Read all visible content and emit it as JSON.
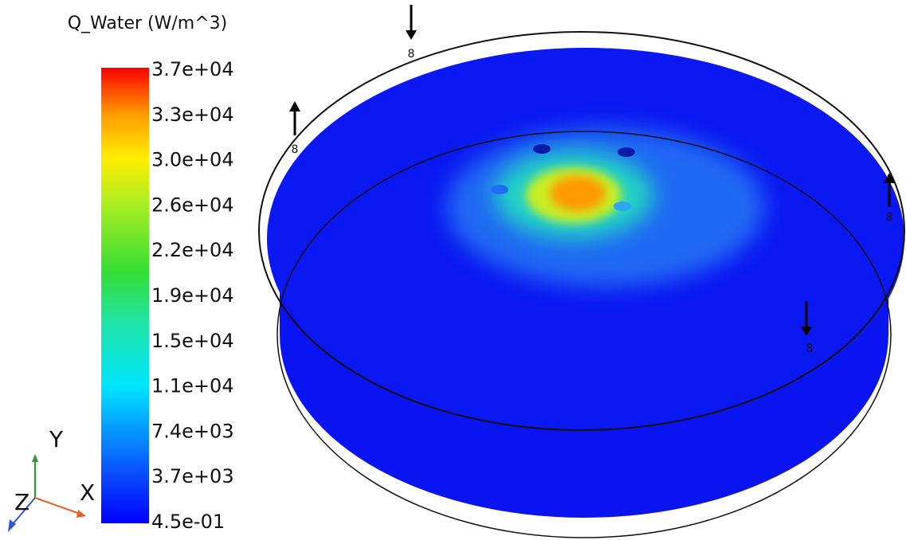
{
  "legend": {
    "title": "Q_Water (W/m^3)",
    "labels": [
      "3.7e+04",
      "3.3e+04",
      "3.0e+04",
      "2.6e+04",
      "2.2e+04",
      "1.9e+04",
      "1.5e+04",
      "1.1e+04",
      "7.4e+03",
      "3.7e+03",
      "4.5e-01"
    ]
  },
  "triad": {
    "x": "X",
    "y": "Y",
    "z": "Z"
  },
  "markers": [
    "8",
    "8",
    "8",
    "8"
  ]
}
